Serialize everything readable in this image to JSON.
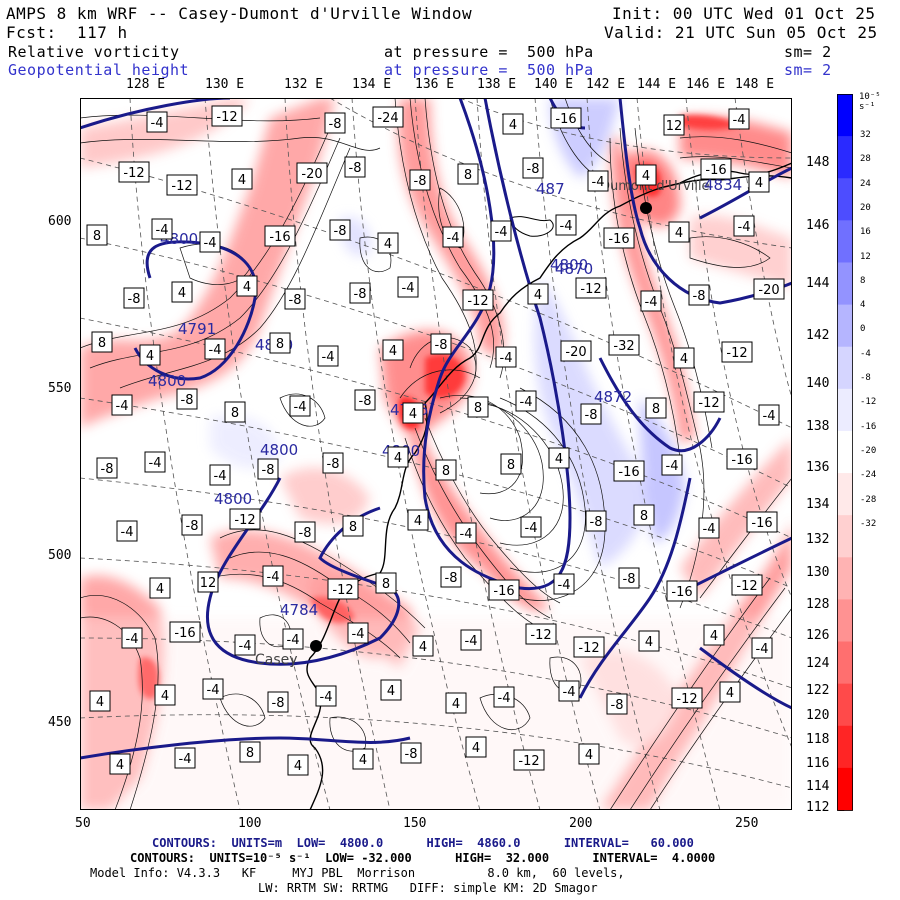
{
  "header": {
    "title": "AMPS 8 km WRF -- Casey-Dumont d'Urville Window",
    "init": "Init: 00 UTC Wed 01 Oct 25",
    "fcst": "Fcst:  117 h",
    "valid": "Valid: 21 UTC Sun 05 Oct 25",
    "field1_name": "Relative vorticity",
    "field1_level": "at pressure =  500 hPa",
    "field1_sm": "sm= 2",
    "field2_name": "Geopotential height",
    "field2_level": "at pressure =  500 hPa",
    "field2_sm": "sm= 2"
  },
  "top_longitudes": [
    "128 E",
    "130 E",
    "132 E",
    "134 E",
    "136 E",
    "138 E",
    "140 E",
    "142 E",
    "144 E",
    "146 E",
    "148 E"
  ],
  "right_longitudes": [
    "148 E",
    "146 E",
    "144 E",
    "142 E",
    "140 E",
    "138 E",
    "136 E",
    "134 E",
    "132 E",
    "130 E",
    "128 E",
    "126 E",
    "124 E",
    "122 E",
    "120 E",
    "118 E",
    "116 E",
    "114 E",
    "112 E"
  ],
  "y_axis": [
    "600",
    "550",
    "500",
    "450"
  ],
  "x_axis": [
    "50",
    "100",
    "150",
    "200",
    "250"
  ],
  "colorbar": {
    "unit": "10⁻⁵ s⁻¹",
    "labels": [
      "32",
      "28",
      "24",
      "20",
      "16",
      "12",
      "8",
      "4",
      "0",
      "-4",
      "-8",
      "-12",
      "-16",
      "-20",
      "-24",
      "-28",
      "-32"
    ],
    "colors": [
      "#0000ff",
      "#2a2aff",
      "#4d4dff",
      "#7070ff",
      "#9393ff",
      "#b5b5ff",
      "#d5d5ff",
      "#ececff",
      "#ffffff",
      "#ffe9e9",
      "#ffd0d0",
      "#ffb3b3",
      "#ff9292",
      "#ff6f6f",
      "#ff4a4a",
      "#ff2525",
      "#ff0000"
    ]
  },
  "map": {
    "height_labels": [
      "4800",
      "4800",
      "4791",
      "4800",
      "4800",
      "4800",
      "4776",
      "4800",
      "4784",
      "4800",
      "4870",
      "4872",
      "4834",
      "487"
    ],
    "stations": [
      "Casey",
      "Dumont d'Urville"
    ],
    "vort_boxes": [
      "-4",
      "-12",
      "-8",
      "-24",
      "4",
      "-16",
      "12",
      "-4",
      "-12",
      "-12",
      "4",
      "-20",
      "-8",
      "-8",
      "8",
      "-8",
      "-4",
      "4",
      "-16",
      "4",
      "8",
      "-4",
      "-4",
      "-16",
      "-8",
      "4",
      "-4",
      "-4",
      "-4",
      "-16",
      "4",
      "-4",
      "-8",
      "4",
      "4",
      "-8",
      "-8",
      "-4",
      "-12",
      "4",
      "-12",
      "-4",
      "-8",
      "-20",
      "8",
      "4",
      "-4",
      "8",
      "-4",
      "4",
      "-8",
      "-4",
      "-20",
      "-32",
      "4",
      "-12",
      "-4",
      "-8",
      "8",
      "-4",
      "-8",
      "4",
      "8",
      "-4",
      "-8",
      "8",
      "-12",
      "-4",
      "-8",
      "-4",
      "-4",
      "-8",
      "-8",
      "4",
      "8",
      "8",
      "4",
      "-16",
      "-4",
      "-16",
      "-4",
      "-8",
      "-12",
      "-8",
      "8",
      "4",
      "-4",
      "-4",
      "-8",
      "8",
      "-4",
      "-16",
      "4",
      "12",
      "-4",
      "-12",
      "8",
      "-8",
      "-16",
      "-4",
      "-8",
      "-16",
      "-12",
      "-4",
      "-16",
      "-4",
      "-4",
      "-4",
      "4",
      "-4",
      "-12",
      "-12",
      "4",
      "4",
      "-4",
      "4",
      "4",
      "-4",
      "-8",
      "-4",
      "4",
      "4",
      "-4",
      "-4",
      "-8",
      "-12",
      "4",
      "4",
      "-4",
      "8",
      "4",
      "4",
      "-8",
      "4",
      "-12",
      "4"
    ]
  },
  "footer": {
    "line1_a": "CONTOURS:  UNITS=m  LOW=  4800.0",
    "line1_b": "HIGH=  4860.0",
    "line1_c": "INTERVAL=   60.000",
    "line2_a": "CONTOURS:  UNITS=10⁻⁵ s⁻¹  LOW= -32.000",
    "line2_b": "HIGH=  32.000",
    "line2_c": "INTERVAL=  4.0000",
    "line3": "Model Info: V4.3.3   KF     MYJ PBL  Morrison          8.0 km,  60 levels,",
    "line4": "LW: RRTM SW: RRTMG   DIFF: simple KM: 2D Smagor"
  }
}
